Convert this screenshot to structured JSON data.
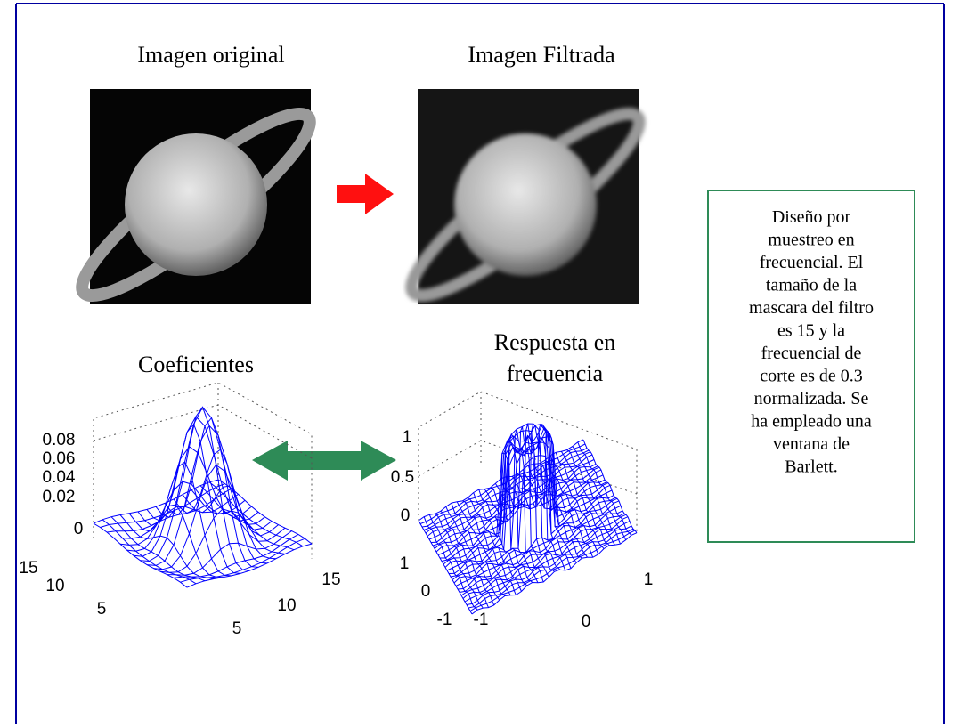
{
  "titles": {
    "original": "Imagen original",
    "filtered": "Imagen Filtrada",
    "coefficients": "Coeficientes",
    "response_line1": "Respuesta en",
    "response_line2": "frecuencia"
  },
  "note": {
    "lines": [
      "Diseño por",
      "muestreo en",
      "frecuencial. El",
      "tamaño de la",
      "mascara del filtro",
      "es 15 y la",
      "frecuencial de",
      "corte es de 0.3",
      "normalizada. Se",
      "ha empleado una",
      "ventana de",
      "Barlett."
    ]
  },
  "coef_plot": {
    "z_ticks": [
      "0.08",
      "0.06",
      "0.04",
      "0.02",
      "0"
    ],
    "y_ticks": [
      "15",
      "10",
      "5"
    ],
    "x_ticks": [
      "5",
      "10",
      "15"
    ]
  },
  "response_plot": {
    "z_ticks": [
      "1",
      "0.5",
      "0"
    ],
    "y_ticks": [
      "1",
      "0",
      "-1"
    ],
    "x_ticks": [
      "-1",
      "0",
      "1"
    ]
  }
}
